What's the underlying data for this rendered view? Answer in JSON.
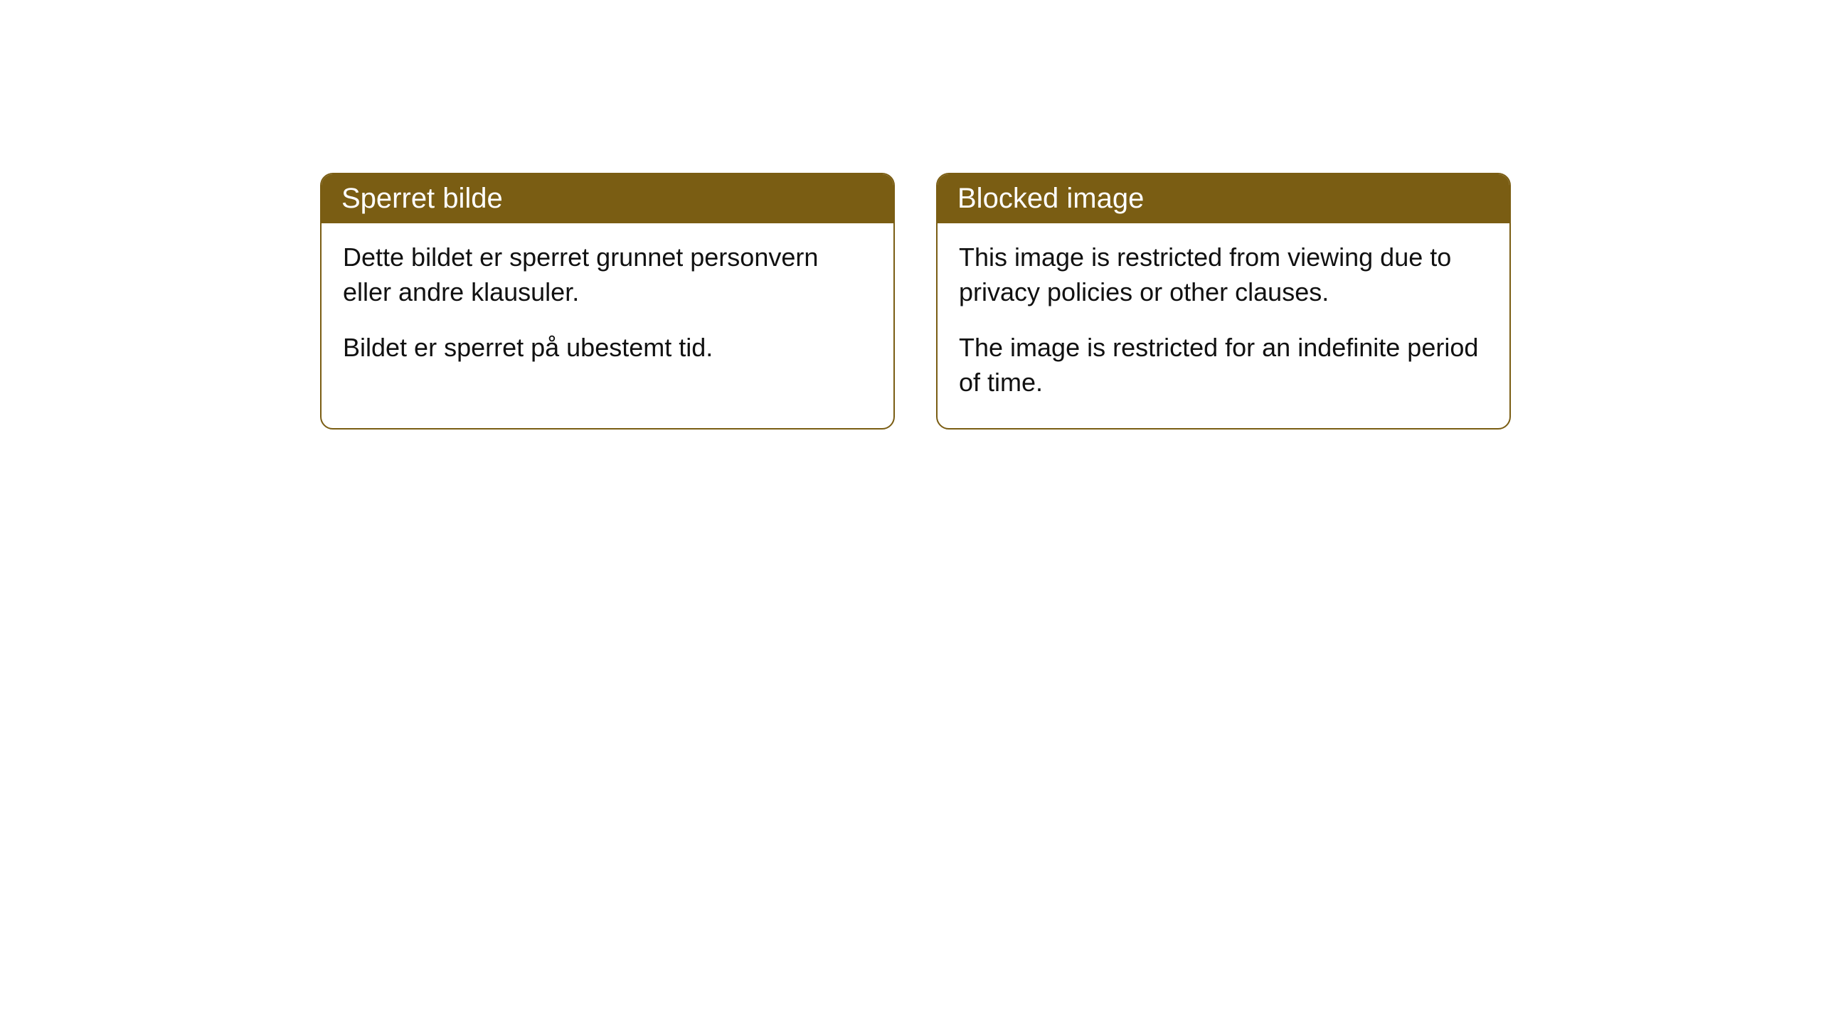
{
  "cards": [
    {
      "title": "Sperret bilde",
      "paragraph1": "Dette bildet er sperret grunnet personvern eller andre klausuler.",
      "paragraph2": "Bildet er sperret på ubestemt tid."
    },
    {
      "title": "Blocked image",
      "paragraph1": "This image is restricted from viewing due to privacy policies or other clauses.",
      "paragraph2": "The image is restricted for an indefinite period of time."
    }
  ],
  "styling": {
    "header_background": "#7a5d13",
    "header_text_color": "#ffffff",
    "border_color": "#7a5d13",
    "body_background": "#ffffff",
    "body_text_color": "#111111",
    "border_radius": 18,
    "header_fontsize": 40,
    "body_fontsize": 36
  }
}
